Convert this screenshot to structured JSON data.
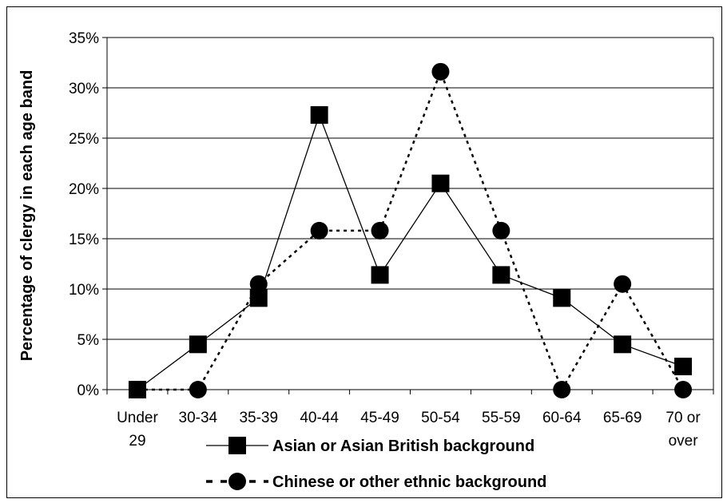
{
  "chart_data": {
    "type": "line",
    "ylabel": "Percentage of clergy in each age band",
    "xlabel": "",
    "categories": [
      [
        "Under",
        "29"
      ],
      [
        "30-34"
      ],
      [
        "35-39"
      ],
      [
        "40-44"
      ],
      [
        "45-49"
      ],
      [
        "50-54"
      ],
      [
        "55-59"
      ],
      [
        "60-64"
      ],
      [
        "65-69"
      ],
      [
        "70 or",
        "over"
      ]
    ],
    "ylim": [
      0,
      35
    ],
    "yticks": [
      0,
      5,
      10,
      15,
      20,
      25,
      30,
      35
    ],
    "ytick_labels": [
      "0%",
      "5%",
      "10%",
      "15%",
      "20%",
      "25%",
      "30%",
      "35%"
    ],
    "grid": "horizontal",
    "legend_position": "bottom",
    "series": [
      {
        "name": "Asian or Asian British background",
        "values": [
          0,
          4.5,
          9.1,
          27.3,
          11.4,
          20.5,
          11.4,
          9.1,
          4.5,
          2.3
        ],
        "color": "#000000",
        "line_style": "solid",
        "marker": "square"
      },
      {
        "name": "Chinese or other ethnic background",
        "values": [
          0,
          0,
          10.5,
          15.8,
          15.8,
          31.6,
          15.8,
          0,
          10.5,
          0
        ],
        "color": "#000000",
        "line_style": "dotted",
        "marker": "circle"
      }
    ]
  }
}
